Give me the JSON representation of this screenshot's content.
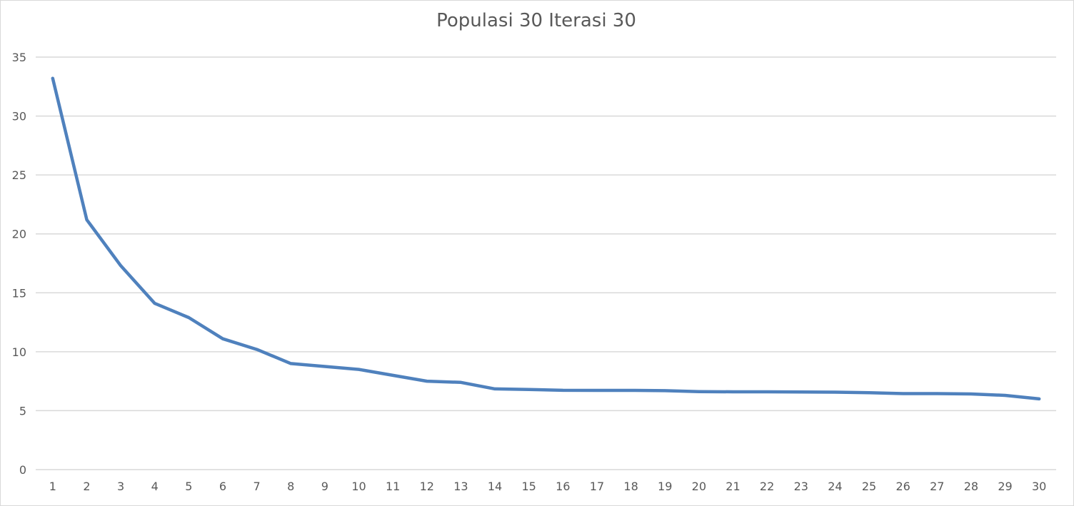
{
  "chart_data": {
    "type": "line",
    "title": "Populasi 30 Iterasi 30",
    "xlabel": "",
    "ylabel": "",
    "ylim": [
      0,
      35
    ],
    "y_ticks": [
      "0",
      "5",
      "10",
      "15",
      "20",
      "25",
      "30",
      "35"
    ],
    "categories": [
      "1",
      "2",
      "3",
      "4",
      "5",
      "6",
      "7",
      "8",
      "9",
      "10",
      "11",
      "12",
      "13",
      "14",
      "15",
      "16",
      "17",
      "18",
      "19",
      "20",
      "21",
      "22",
      "23",
      "24",
      "25",
      "26",
      "27",
      "28",
      "29",
      "30"
    ],
    "series": [
      {
        "values": [
          33.2,
          21.2,
          17.3,
          14.1,
          12.9,
          11.1,
          10.2,
          9.0,
          8.75,
          8.5,
          8.0,
          7.5,
          7.4,
          6.85,
          6.8,
          6.73,
          6.72,
          6.72,
          6.7,
          6.62,
          6.6,
          6.6,
          6.58,
          6.57,
          6.53,
          6.45,
          6.45,
          6.42,
          6.3,
          6.0
        ],
        "color": "#4f81bd"
      }
    ],
    "grid": true,
    "legend": "none"
  }
}
